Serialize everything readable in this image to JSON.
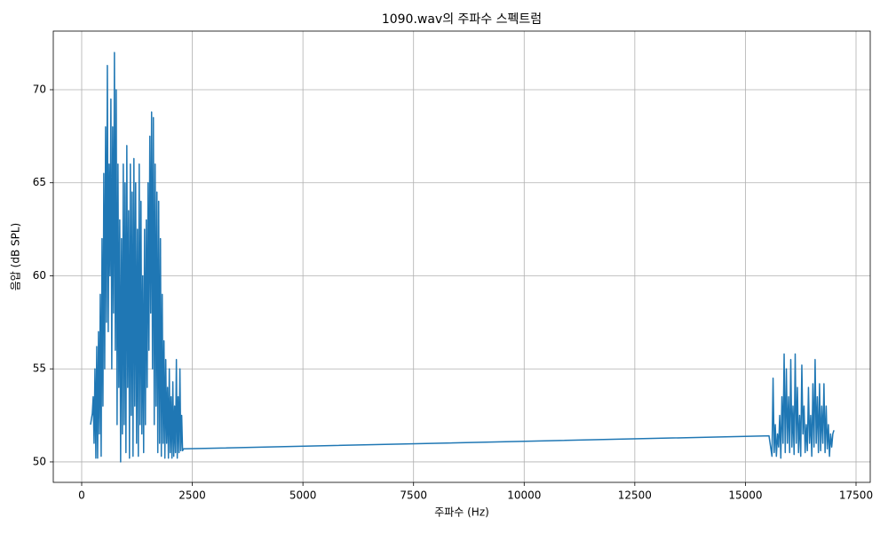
{
  "chart_data": {
    "type": "line",
    "title": "1090.wav의 주파수 스펙트럼",
    "x_label": "주파수 (Hz)",
    "y_label": "음압 (dB SPL)",
    "xlim": [
      -642,
      17821
    ],
    "ylim": [
      48.9,
      73.15
    ],
    "xticks": [
      0,
      2500,
      5000,
      7500,
      10000,
      12500,
      15000,
      17500
    ],
    "yticks": [
      50,
      55,
      60,
      65,
      70
    ],
    "grid": true,
    "series": [
      {
        "color": "#1f77b4",
        "x": [
          200,
          220,
          240,
          260,
          280,
          300,
          320,
          340,
          360,
          380,
          400,
          420,
          440,
          460,
          480,
          500,
          520,
          540,
          560,
          580,
          600,
          620,
          640,
          660,
          680,
          700,
          720,
          740,
          760,
          780,
          800,
          820,
          840,
          860,
          880,
          900,
          920,
          940,
          960,
          980,
          1000,
          1020,
          1040,
          1060,
          1080,
          1100,
          1120,
          1140,
          1160,
          1180,
          1200,
          1220,
          1240,
          1260,
          1280,
          1300,
          1320,
          1340,
          1360,
          1380,
          1400,
          1420,
          1440,
          1460,
          1480,
          1500,
          1520,
          1540,
          1560,
          1580,
          1600,
          1620,
          1640,
          1660,
          1680,
          1700,
          1720,
          1740,
          1760,
          1780,
          1800,
          1820,
          1840,
          1860,
          1880,
          1900,
          1920,
          1940,
          1960,
          1980,
          2000,
          2020,
          2040,
          2060,
          2080,
          2100,
          2120,
          2140,
          2160,
          2180,
          2200,
          2220,
          2240,
          2260,
          2280,
          2300,
          15533,
          15600,
          15625,
          15650,
          15675,
          15700,
          15725,
          15750,
          15775,
          15800,
          15825,
          15850,
          15875,
          15900,
          15925,
          15950,
          15975,
          16000,
          16025,
          16050,
          16075,
          16100,
          16125,
          16150,
          16175,
          16200,
          16225,
          16250,
          16275,
          16300,
          16325,
          16350,
          16375,
          16400,
          16425,
          16450,
          16475,
          16500,
          16525,
          16550,
          16575,
          16600,
          16625,
          16650,
          16675,
          16700,
          16725,
          16750,
          16775,
          16800,
          16825,
          16850,
          16875,
          16900,
          16925,
          16950,
          16975,
          17000
        ],
        "values": [
          52.0,
          52.3,
          52.6,
          53.5,
          51.0,
          55.0,
          50.2,
          56.2,
          50.2,
          57.0,
          51.5,
          59.0,
          50.3,
          62.0,
          53.0,
          65.5,
          55.0,
          68.0,
          57.5,
          71.3,
          57.0,
          66.0,
          60.0,
          69.5,
          55.0,
          68.0,
          58.0,
          72.0,
          56.0,
          70.0,
          52.0,
          66.0,
          54.0,
          63.0,
          50.0,
          62.0,
          51.5,
          66.0,
          52.0,
          65.0,
          50.5,
          67.0,
          54.0,
          63.5,
          50.2,
          66.0,
          52.5,
          64.5,
          50.3,
          66.3,
          53.0,
          65.0,
          51.0,
          62.5,
          50.3,
          66.0,
          52.0,
          64.0,
          51.5,
          60.0,
          50.5,
          62.5,
          52.0,
          63.0,
          54.0,
          65.0,
          56.0,
          67.5,
          58.0,
          68.8,
          55.0,
          68.5,
          52.0,
          66.0,
          53.0,
          64.5,
          50.5,
          64.0,
          51.0,
          62.0,
          50.3,
          59.0,
          51.0,
          56.5,
          50.2,
          55.5,
          51.0,
          54.0,
          50.2,
          55.0,
          50.5,
          53.5,
          50.2,
          54.3,
          50.3,
          53.0,
          50.5,
          55.5,
          50.2,
          53.5,
          50.5,
          55.0,
          50.6,
          52.5,
          50.6,
          50.7,
          51.4,
          50.3,
          54.5,
          50.5,
          52.0,
          50.3,
          51.5,
          50.8,
          52.5,
          50.2,
          53.5,
          51.0,
          55.8,
          50.5,
          55.0,
          51.0,
          53.5,
          50.5,
          55.5,
          50.8,
          53.0,
          50.4,
          55.8,
          51.0,
          54.0,
          50.5,
          52.5,
          50.3,
          55.2,
          51.5,
          53.0,
          50.5,
          52.0,
          50.6,
          54.0,
          51.0,
          52.5,
          50.3,
          54.2,
          50.8,
          55.5,
          51.0,
          53.5,
          50.5,
          54.2,
          50.6,
          53.0,
          51.0,
          54.2,
          50.5,
          53.0,
          50.7,
          52.0,
          50.3,
          51.5,
          50.8,
          51.5,
          51.7
        ]
      }
    ]
  }
}
